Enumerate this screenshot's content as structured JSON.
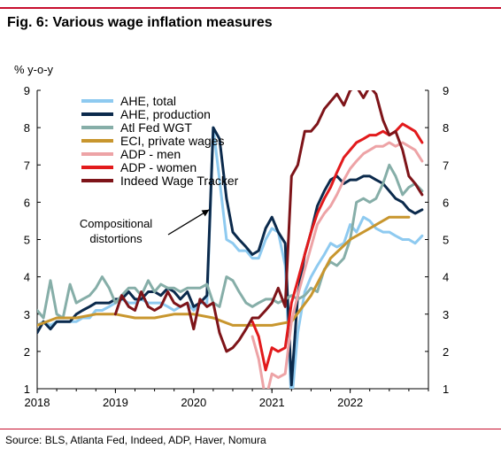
{
  "title": "Fig. 6: Various wage inflation measures",
  "source": "Source: BLS, Atlanta Fed, Indeed, ADP, Haver, Nomura",
  "chart_data": {
    "type": "line",
    "ylabel": "% y-o-y",
    "ylim": [
      1,
      9
    ],
    "y_ticks": [
      "1",
      "2",
      "3",
      "4",
      "5",
      "6",
      "7",
      "8",
      "9"
    ],
    "xlim": [
      2018.0,
      2023.0
    ],
    "x_ticks": [
      {
        "value": 2018.0,
        "label": "2018"
      },
      {
        "value": 2019.0,
        "label": "2019"
      },
      {
        "value": 2020.0,
        "label": "2020"
      },
      {
        "value": 2021.0,
        "label": "2021"
      },
      {
        "value": 2022.0,
        "label": "2022"
      }
    ],
    "grid": false,
    "legend_position": "top-left",
    "annotation": {
      "lines": [
        "Compositional",
        "distortions"
      ],
      "arrow_to": [
        2020.2,
        5.8
      ]
    },
    "series": [
      {
        "name": "AHE, total",
        "color": "#8ecaf0",
        "width": 3,
        "x": [
          2018.0,
          2018.08,
          2018.17,
          2018.25,
          2018.33,
          2018.42,
          2018.5,
          2018.58,
          2018.67,
          2018.75,
          2018.83,
          2018.92,
          2019.0,
          2019.08,
          2019.17,
          2019.25,
          2019.33,
          2019.42,
          2019.5,
          2019.58,
          2019.67,
          2019.75,
          2019.83,
          2019.92,
          2020.0,
          2020.08,
          2020.17,
          2020.25,
          2020.33,
          2020.42,
          2020.5,
          2020.58,
          2020.67,
          2020.75,
          2020.83,
          2020.92,
          2021.0,
          2021.08,
          2021.17,
          2021.25,
          2021.33,
          2021.42,
          2021.5,
          2021.58,
          2021.67,
          2021.75,
          2021.83,
          2021.92,
          2022.0,
          2022.08,
          2022.17,
          2022.25,
          2022.33,
          2022.42,
          2022.5,
          2022.58,
          2022.67,
          2022.75,
          2022.83,
          2022.92
        ],
        "y": [
          2.7,
          2.8,
          2.7,
          2.8,
          2.8,
          2.8,
          2.8,
          2.9,
          2.9,
          3.1,
          3.1,
          3.2,
          3.3,
          3.4,
          3.3,
          3.3,
          3.4,
          3.3,
          3.3,
          3.3,
          3.2,
          3.1,
          3.2,
          3.3,
          3.1,
          3.3,
          3.3,
          8.0,
          6.6,
          5.0,
          4.9,
          4.7,
          4.7,
          4.5,
          4.5,
          5.0,
          5.3,
          5.2,
          4.3,
          0.6,
          2.5,
          3.6,
          4.0,
          4.3,
          4.6,
          4.9,
          4.8,
          4.9,
          5.4,
          5.2,
          5.6,
          5.5,
          5.3,
          5.2,
          5.2,
          5.1,
          5.0,
          5.0,
          4.9,
          5.1
        ]
      },
      {
        "name": "AHE, production",
        "color": "#0b2a4c",
        "width": 3,
        "x": [
          2018.0,
          2018.08,
          2018.17,
          2018.25,
          2018.33,
          2018.42,
          2018.5,
          2018.58,
          2018.67,
          2018.75,
          2018.83,
          2018.92,
          2019.0,
          2019.08,
          2019.17,
          2019.25,
          2019.33,
          2019.42,
          2019.5,
          2019.58,
          2019.67,
          2019.75,
          2019.83,
          2019.92,
          2020.0,
          2020.08,
          2020.17,
          2020.25,
          2020.33,
          2020.42,
          2020.5,
          2020.58,
          2020.67,
          2020.75,
          2020.83,
          2020.92,
          2021.0,
          2021.08,
          2021.17,
          2021.25,
          2021.33,
          2021.42,
          2021.5,
          2021.58,
          2021.67,
          2021.75,
          2021.83,
          2021.92,
          2022.0,
          2022.08,
          2022.17,
          2022.25,
          2022.33,
          2022.42,
          2022.5,
          2022.58,
          2022.67,
          2022.75,
          2022.83,
          2022.92
        ],
        "y": [
          2.5,
          2.8,
          2.6,
          2.8,
          2.8,
          2.8,
          3.0,
          3.1,
          3.2,
          3.3,
          3.3,
          3.3,
          3.4,
          3.4,
          3.6,
          3.4,
          3.4,
          3.6,
          3.6,
          3.5,
          3.7,
          3.6,
          3.4,
          3.6,
          3.2,
          3.3,
          3.5,
          8.0,
          7.7,
          6.1,
          5.2,
          5.0,
          4.8,
          4.6,
          4.7,
          5.3,
          5.6,
          5.2,
          4.9,
          1.1,
          3.5,
          4.6,
          5.2,
          5.9,
          6.3,
          6.6,
          6.7,
          6.5,
          6.6,
          6.6,
          6.7,
          6.7,
          6.6,
          6.5,
          6.3,
          6.1,
          6.0,
          5.8,
          5.7,
          5.8
        ]
      },
      {
        "name": "Atl Fed WGT",
        "color": "#86aea8",
        "width": 3,
        "x": [
          2018.0,
          2018.08,
          2018.17,
          2018.25,
          2018.33,
          2018.42,
          2018.5,
          2018.58,
          2018.67,
          2018.75,
          2018.83,
          2018.92,
          2019.0,
          2019.08,
          2019.17,
          2019.25,
          2019.33,
          2019.42,
          2019.5,
          2019.58,
          2019.67,
          2019.75,
          2019.83,
          2019.92,
          2020.0,
          2020.08,
          2020.17,
          2020.25,
          2020.33,
          2020.42,
          2020.5,
          2020.58,
          2020.67,
          2020.75,
          2020.83,
          2020.92,
          2021.0,
          2021.08,
          2021.17,
          2021.25,
          2021.33,
          2021.42,
          2021.5,
          2021.58,
          2021.67,
          2021.75,
          2021.83,
          2021.92,
          2022.0,
          2022.08,
          2022.17,
          2022.25,
          2022.33,
          2022.42,
          2022.5,
          2022.58,
          2022.67,
          2022.75,
          2022.83,
          2022.92
        ],
        "y": [
          3.1,
          2.9,
          3.9,
          3.0,
          2.9,
          3.8,
          3.3,
          3.4,
          3.5,
          3.7,
          4.0,
          3.7,
          3.3,
          3.5,
          3.7,
          3.7,
          3.5,
          3.9,
          3.6,
          3.8,
          3.7,
          3.7,
          3.6,
          3.7,
          3.7,
          3.7,
          3.8,
          3.3,
          3.2,
          4.0,
          3.9,
          3.6,
          3.3,
          3.2,
          3.3,
          3.4,
          3.4,
          3.3,
          3.4,
          3.5,
          3.4,
          3.5,
          3.7,
          3.6,
          4.2,
          4.4,
          4.3,
          4.5,
          5.0,
          6.0,
          6.1,
          6.0,
          6.1,
          6.5,
          7.0,
          6.7,
          6.2,
          6.4,
          6.5,
          6.3
        ]
      },
      {
        "name": "ECI, private wages",
        "color": "#c8962e",
        "width": 3,
        "x": [
          2018.0,
          2018.25,
          2018.5,
          2018.75,
          2019.0,
          2019.25,
          2019.5,
          2019.75,
          2020.0,
          2020.25,
          2020.5,
          2020.75,
          2021.0,
          2021.25,
          2021.5,
          2021.75,
          2022.0,
          2022.25,
          2022.5,
          2022.75
        ],
        "y": [
          2.7,
          2.9,
          2.9,
          3.0,
          3.0,
          2.9,
          2.9,
          3.0,
          3.0,
          2.9,
          2.7,
          2.7,
          2.7,
          2.8,
          3.5,
          4.5,
          5.0,
          5.3,
          5.6,
          5.6
        ]
      },
      {
        "name": "ADP - men",
        "color": "#eda3a6",
        "width": 3,
        "x": [
          2020.75,
          2020.83,
          2020.92,
          2021.0,
          2021.08,
          2021.17,
          2021.25,
          2021.33,
          2021.42,
          2021.5,
          2021.58,
          2021.67,
          2021.75,
          2021.83,
          2021.92,
          2022.0,
          2022.08,
          2022.17,
          2022.25,
          2022.33,
          2022.42,
          2022.5,
          2022.58,
          2022.67,
          2022.75,
          2022.83,
          2022.92
        ],
        "y": [
          2.4,
          1.8,
          0.7,
          1.4,
          1.3,
          1.4,
          2.8,
          3.5,
          4.2,
          4.8,
          5.4,
          5.7,
          5.9,
          6.2,
          6.6,
          6.9,
          7.1,
          7.3,
          7.4,
          7.5,
          7.5,
          7.6,
          7.5,
          7.6,
          7.5,
          7.4,
          7.1
        ]
      },
      {
        "name": "ADP - women",
        "color": "#e21a1c",
        "width": 3,
        "x": [
          2020.75,
          2020.83,
          2020.92,
          2021.0,
          2021.08,
          2021.17,
          2021.25,
          2021.33,
          2021.42,
          2021.5,
          2021.58,
          2021.67,
          2021.75,
          2021.83,
          2021.92,
          2022.0,
          2022.08,
          2022.17,
          2022.25,
          2022.33,
          2022.42,
          2022.5,
          2022.58,
          2022.67,
          2022.75,
          2022.83,
          2022.92
        ],
        "y": [
          2.8,
          2.4,
          1.5,
          2.1,
          2.0,
          2.1,
          3.3,
          3.9,
          4.6,
          5.2,
          5.7,
          6.1,
          6.4,
          6.8,
          7.2,
          7.4,
          7.6,
          7.7,
          7.8,
          7.8,
          7.9,
          7.8,
          7.9,
          8.1,
          8.0,
          7.9,
          7.6
        ]
      },
      {
        "name": "Indeed Wage Tracker",
        "color": "#7e1419",
        "width": 3,
        "x": [
          2019.0,
          2019.08,
          2019.17,
          2019.25,
          2019.33,
          2019.42,
          2019.5,
          2019.58,
          2019.67,
          2019.75,
          2019.83,
          2019.92,
          2020.0,
          2020.08,
          2020.17,
          2020.25,
          2020.33,
          2020.42,
          2020.5,
          2020.58,
          2020.67,
          2020.75,
          2020.83,
          2020.92,
          2021.0,
          2021.08,
          2021.17,
          2021.25,
          2021.33,
          2021.42,
          2021.5,
          2021.58,
          2021.67,
          2021.75,
          2021.83,
          2021.92,
          2022.0,
          2022.08,
          2022.17,
          2022.25,
          2022.33,
          2022.42,
          2022.5,
          2022.58,
          2022.67,
          2022.75,
          2022.83,
          2022.92
        ],
        "y": [
          3.0,
          3.5,
          3.2,
          3.1,
          3.6,
          3.2,
          3.1,
          3.2,
          3.6,
          3.3,
          3.2,
          3.3,
          2.6,
          3.4,
          3.2,
          3.3,
          2.5,
          2.0,
          2.1,
          2.3,
          2.6,
          2.9,
          2.9,
          3.1,
          3.3,
          3.7,
          3.2,
          6.7,
          7.0,
          7.9,
          7.9,
          8.1,
          8.5,
          8.7,
          8.9,
          8.6,
          9.0,
          9.1,
          8.8,
          9.1,
          8.9,
          8.2,
          7.8,
          7.9,
          7.4,
          6.7,
          6.5,
          6.2
        ]
      }
    ]
  }
}
